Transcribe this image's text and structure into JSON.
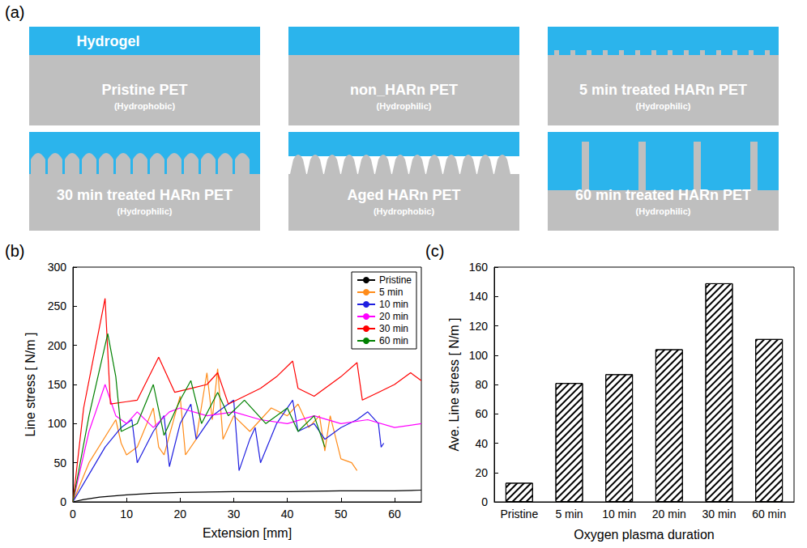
{
  "diagram": {
    "label": "(a)",
    "hydrogel_label": "Hydrogel",
    "panels": [
      {
        "title": "Pristine PET",
        "note": "(Hydrophobic)"
      },
      {
        "title": "non_HARn PET",
        "note": "(Hydrophilic)"
      },
      {
        "title": "5 min treated HARn PET",
        "note": "(Hydrophilic)"
      },
      {
        "title": "30 min treated HARn PET",
        "note": "(Hydrophilic)"
      },
      {
        "title": "Aged HARn PET",
        "note": "(Hydrophobic)"
      },
      {
        "title": "60 min treated HARn PET",
        "note": "(Hydrophilic)"
      }
    ]
  },
  "chart_data": [
    {
      "type": "line",
      "panel_label": "(b)",
      "x_label": "Extension [mm]",
      "y_label": "Line stress [ N/m ]",
      "xlim": [
        0,
        65
      ],
      "xticks": [
        0,
        10,
        20,
        30,
        40,
        50,
        60
      ],
      "ylim": [
        0,
        300
      ],
      "yticks": [
        0,
        50,
        100,
        150,
        200,
        250,
        300
      ],
      "grid": false,
      "legend": "upper right",
      "series": [
        {
          "name": "Pristine",
          "color": "#000000",
          "x": [
            0,
            2,
            5,
            10,
            15,
            20,
            30,
            40,
            50,
            60,
            65
          ],
          "values": [
            0,
            3,
            6,
            9,
            11,
            12,
            13,
            13,
            14,
            14,
            15
          ]
        },
        {
          "name": "5 min",
          "color": "#ff8c1a",
          "x": [
            0,
            3,
            8,
            9,
            10,
            12,
            15,
            16,
            17,
            20,
            21,
            23,
            25,
            26,
            27,
            28,
            30,
            33,
            35,
            37,
            40,
            42,
            44,
            46,
            47,
            48,
            50,
            52,
            53
          ],
          "values": [
            0,
            50,
            105,
            75,
            60,
            70,
            120,
            70,
            60,
            135,
            60,
            80,
            165,
            105,
            170,
            80,
            110,
            90,
            105,
            120,
            110,
            125,
            95,
            110,
            65,
            110,
            55,
            50,
            40
          ]
        },
        {
          "name": "10 min",
          "color": "#1f1fe0",
          "x": [
            0,
            3,
            6,
            9,
            11,
            12,
            15,
            17,
            18,
            20,
            22,
            23,
            26,
            30,
            31,
            33,
            34,
            35,
            38,
            41,
            42,
            45,
            47,
            50,
            53,
            55,
            57,
            57.5,
            58
          ],
          "values": [
            0,
            35,
            70,
            95,
            105,
            50,
            90,
            110,
            45,
            100,
            125,
            80,
            110,
            130,
            40,
            80,
            95,
            50,
            100,
            130,
            90,
            100,
            80,
            95,
            105,
            115,
            100,
            70,
            75
          ]
        },
        {
          "name": "20 min",
          "color": "#ff00ff",
          "x": [
            0,
            3,
            6,
            8,
            10,
            12,
            15,
            18,
            20,
            25,
            30,
            35,
            40,
            45,
            50,
            55,
            60,
            65
          ],
          "values": [
            0,
            90,
            150,
            110,
            100,
            115,
            95,
            115,
            120,
            110,
            115,
            105,
            100,
            110,
            100,
            105,
            95,
            100
          ]
        },
        {
          "name": "30 min",
          "color": "#ff0000",
          "x": [
            0,
            2,
            4,
            6,
            7,
            10,
            12,
            16,
            19,
            22,
            25,
            27,
            29,
            32,
            35,
            38,
            41,
            42,
            45,
            48,
            50,
            53,
            54,
            57,
            60,
            63,
            65
          ],
          "values": [
            0,
            120,
            190,
            260,
            125,
            128,
            130,
            185,
            140,
            145,
            150,
            165,
            125,
            135,
            145,
            160,
            180,
            145,
            135,
            150,
            160,
            178,
            130,
            140,
            150,
            165,
            155
          ]
        },
        {
          "name": "60 min",
          "color": "#008000",
          "x": [
            0,
            3,
            6.5,
            8,
            9,
            12,
            15,
            17,
            20,
            22,
            24,
            27,
            29,
            32,
            36,
            40,
            42,
            45,
            47
          ],
          "values": [
            0,
            110,
            215,
            160,
            90,
            100,
            150,
            85,
            130,
            155,
            100,
            140,
            110,
            130,
            100,
            120,
            90,
            110,
            70
          ]
        }
      ]
    },
    {
      "type": "bar",
      "panel_label": "(c)",
      "x_label": "Oxygen plasma duration",
      "y_label": "Ave. Line stress [ N/m ]",
      "categories": [
        "Pristine",
        "5 min",
        "10 min",
        "20 min",
        "30 min",
        "60 min"
      ],
      "values": [
        13,
        81,
        87,
        104,
        149,
        111
      ],
      "ylim": [
        0,
        160
      ],
      "yticks": [
        0,
        20,
        40,
        60,
        80,
        100,
        120,
        140,
        160
      ],
      "grid": false
    }
  ]
}
